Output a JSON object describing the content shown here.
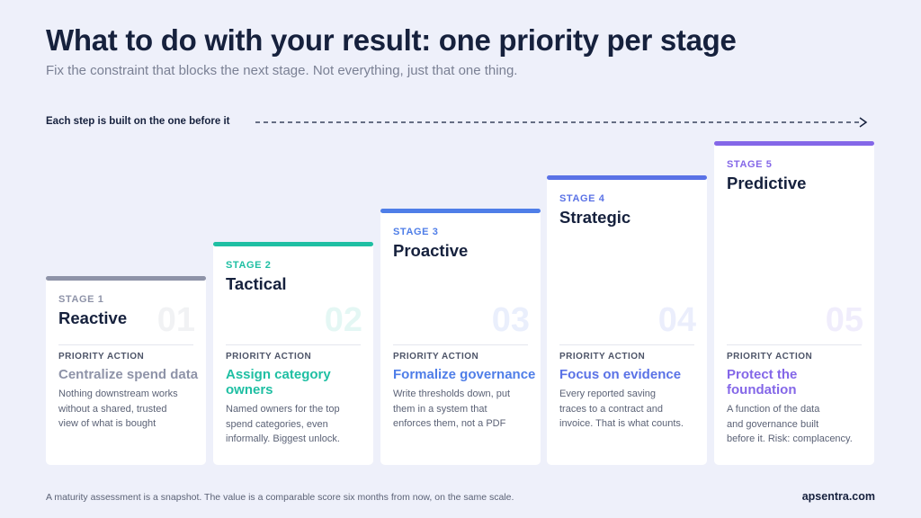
{
  "header": {
    "title": "What to do with your result: one priority per stage",
    "subtitle": "Fix the constraint that blocks the next stage. Not everything, just that one thing."
  },
  "progression": {
    "label": "Each step is built on the one before it"
  },
  "stages": [
    {
      "stage_label": "STAGE 1",
      "name": "Reactive",
      "number": "01",
      "priority_label": "PRIORITY ACTION",
      "action_lines": [
        "Centralize spend data"
      ],
      "description_lines": [
        "Nothing downstream works",
        "without a shared, trusted",
        "view of what is bought"
      ],
      "accent_color": "#8e93a8"
    },
    {
      "stage_label": "STAGE 2",
      "name": "Tactical",
      "number": "02",
      "priority_label": "PRIORITY ACTION",
      "action_lines": [
        "Assign category",
        "owners"
      ],
      "description_lines": [
        "Named owners for the top",
        "spend categories, even",
        "informally. Biggest unlock."
      ],
      "accent_color": "#1fbfa3"
    },
    {
      "stage_label": "STAGE 3",
      "name": "Proactive",
      "number": "03",
      "priority_label": "PRIORITY ACTION",
      "action_lines": [
        "Formalize governance"
      ],
      "description_lines": [
        "Write thresholds down, put",
        "them in a system that",
        "enforces them, not a PDF"
      ],
      "accent_color": "#4f7ee8"
    },
    {
      "stage_label": "STAGE 4",
      "name": "Strategic",
      "number": "04",
      "priority_label": "PRIORITY ACTION",
      "action_lines": [
        "Focus on evidence"
      ],
      "description_lines": [
        "Every reported saving",
        "traces to a contract and",
        "invoice. That is what counts."
      ],
      "accent_color": "#5a72e6"
    },
    {
      "stage_label": "STAGE 5",
      "name": "Predictive",
      "number": "05",
      "priority_label": "PRIORITY ACTION",
      "action_lines": [
        "Protect the",
        "foundation"
      ],
      "description_lines": [
        "A function of the data",
        "and governance built",
        "before it. Risk: complacency."
      ],
      "accent_color": "#8467e8"
    }
  ],
  "footer": {
    "note": "A maturity assessment is a snapshot. The value is a comparable score six months from now, on the same scale.",
    "brand": "apsentra.com"
  }
}
